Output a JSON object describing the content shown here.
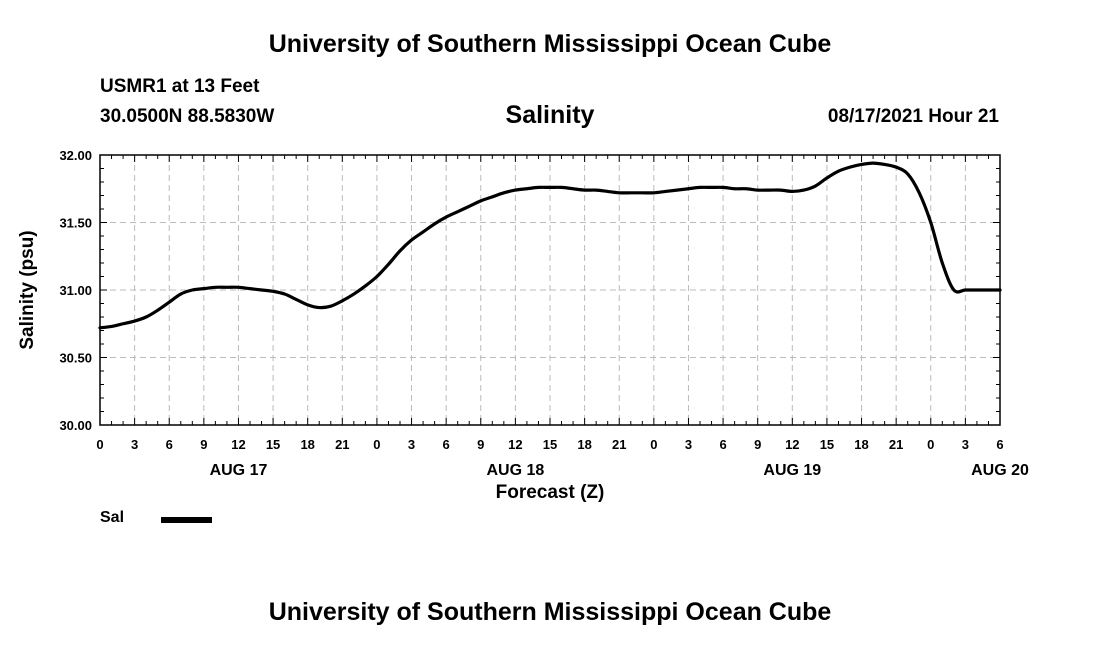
{
  "header": {
    "title": "University of Southern Mississippi Ocean Cube",
    "station": "USMR1 at 13 Feet",
    "coordinates": "30.0500N  88.5830W",
    "chart_title": "Salinity",
    "datetime": "08/17/2021 Hour 21"
  },
  "footer": {
    "title": "University of Southern Mississippi Ocean Cube"
  },
  "legend": {
    "label": "Sal"
  },
  "chart_data": {
    "type": "line",
    "title": "Salinity",
    "xlabel": "Forecast (Z)",
    "ylabel": "Salinity (psu)",
    "x_unit": "hours since AUG 17 00Z",
    "xlim": [
      0,
      78
    ],
    "ylim": [
      30.0,
      32.0
    ],
    "y_ticks": [
      "30.00",
      "30.50",
      "31.00",
      "31.50",
      "32.00"
    ],
    "x_tick_labels": [
      "0",
      "3",
      "6",
      "9",
      "12",
      "15",
      "18",
      "21",
      "0",
      "3",
      "6",
      "9",
      "12",
      "15",
      "18",
      "21",
      "0",
      "3",
      "6",
      "9",
      "12",
      "15",
      "18",
      "21",
      "0",
      "3",
      "6"
    ],
    "date_labels": [
      {
        "label": "AUG 17",
        "hour": 12
      },
      {
        "label": "AUG 18",
        "hour": 36
      },
      {
        "label": "AUG 19",
        "hour": 60
      },
      {
        "label": "AUG 20",
        "hour": 78
      }
    ],
    "grid": true,
    "legend_position": "bottom-left",
    "series": [
      {
        "name": "Sal",
        "color": "#000000",
        "x": [
          0,
          1,
          2,
          3,
          4,
          5,
          6,
          7,
          8,
          9,
          10,
          11,
          12,
          13,
          14,
          15,
          16,
          17,
          18,
          19,
          20,
          21,
          22,
          23,
          24,
          25,
          26,
          27,
          28,
          29,
          30,
          31,
          32,
          33,
          34,
          35,
          36,
          37,
          38,
          39,
          40,
          41,
          42,
          43,
          44,
          45,
          46,
          47,
          48,
          49,
          50,
          51,
          52,
          53,
          54,
          55,
          56,
          57,
          58,
          59,
          60,
          61,
          62,
          63,
          64,
          65,
          66,
          67,
          68,
          69,
          70,
          71,
          72,
          73,
          74,
          75,
          76,
          77,
          78
        ],
        "values": [
          30.72,
          30.73,
          30.75,
          30.77,
          30.8,
          30.85,
          30.91,
          30.97,
          31.0,
          31.01,
          31.02,
          31.02,
          31.02,
          31.01,
          31.0,
          30.99,
          30.97,
          30.93,
          30.89,
          30.87,
          30.88,
          30.92,
          30.97,
          31.03,
          31.1,
          31.19,
          31.29,
          31.37,
          31.43,
          31.49,
          31.54,
          31.58,
          31.62,
          31.66,
          31.69,
          31.72,
          31.74,
          31.75,
          31.76,
          31.76,
          31.76,
          31.75,
          31.74,
          31.74,
          31.73,
          31.72,
          31.72,
          31.72,
          31.72,
          31.73,
          31.74,
          31.75,
          31.76,
          31.76,
          31.76,
          31.75,
          31.75,
          31.74,
          31.74,
          31.74,
          31.73,
          31.74,
          31.77,
          31.83,
          31.88,
          31.91,
          31.93,
          31.94,
          31.93,
          31.91,
          31.86,
          31.72,
          31.5,
          31.2,
          31.0,
          31.0,
          31.0,
          31.0,
          31.0
        ]
      }
    ]
  }
}
